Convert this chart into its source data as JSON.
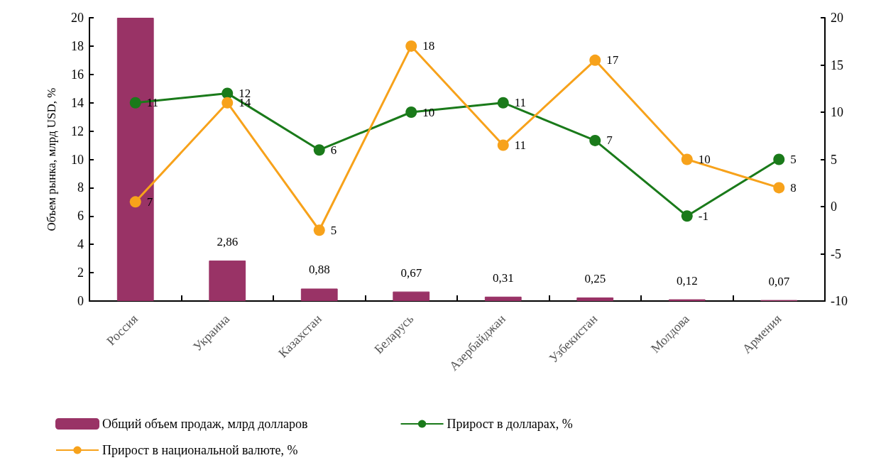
{
  "chart_data": {
    "type": "bar",
    "ylabel": "Объем рынка, млрд USD, %",
    "categories": [
      "Россия",
      "Украина",
      "Казахстан",
      "Беларусь",
      "Азербайджан",
      "Узбекистан",
      "Молдова",
      "Армения"
    ],
    "series": [
      {
        "name": "Общий объем продаж, млрд долларов",
        "color": "#993366",
        "values": [
          20,
          2.86,
          0.88,
          0.67,
          0.31,
          0.25,
          0.12,
          0.07
        ],
        "value_labels": [
          null,
          "2,86",
          "0,88",
          "0,67",
          "0,31",
          "0,25",
          "0,12",
          "0,07"
        ]
      },
      {
        "name": "Прирост в долларах, %",
        "type": "line",
        "axis": "y2",
        "color": "#1a7a1a",
        "values": [
          11,
          12,
          6,
          10,
          11,
          7,
          -1,
          5
        ],
        "value_labels": [
          "11",
          "12",
          "6",
          "10",
          "11",
          "7",
          "-1",
          "5"
        ]
      },
      {
        "name": "Прирост в национальной валюте, %",
        "type": "line",
        "color": "#f7a21b",
        "values": [
          7,
          14,
          5,
          18,
          11,
          17,
          10,
          8
        ],
        "value_labels": [
          "7",
          "14",
          "5",
          "18",
          "11",
          "17",
          "10",
          "8"
        ]
      }
    ],
    "ylim": [
      0,
      20
    ],
    "yticks": [
      0,
      2,
      4,
      6,
      8,
      10,
      12,
      14,
      16,
      18,
      20
    ],
    "y2lim": [
      -10,
      20
    ],
    "y2ticks": [
      -10,
      -5,
      0,
      5,
      10,
      15,
      20
    ],
    "legend": "bottom",
    "marker": "circle",
    "line_style": "solid",
    "grid": false
  }
}
